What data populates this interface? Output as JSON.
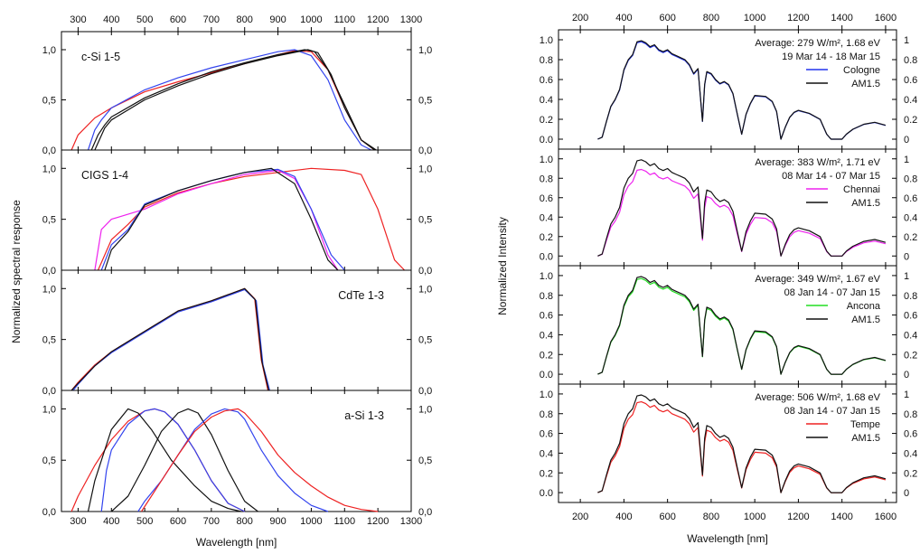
{
  "chart_data": [
    {
      "type": "line",
      "name": "spectral-response",
      "xlabel": "Wavelength [nm]",
      "ylabel": "Normalized spectral response",
      "xlim": [
        250,
        1300
      ],
      "ylim": [
        0,
        1.18
      ],
      "xticks": [
        300,
        400,
        500,
        600,
        700,
        800,
        900,
        1000,
        1100,
        1200,
        1300
      ],
      "xtick_labels_bottom": [
        "300",
        "400",
        "500",
        "600",
        "700",
        "800",
        "900",
        "1000",
        "1100",
        "1200",
        "1300"
      ],
      "yticks": [
        0,
        0.5,
        1.0
      ],
      "ytick_labels": [
        "0,0",
        "0,5",
        "1,0"
      ],
      "colors": {
        "red": "#ee2222",
        "blue": "#3344ee",
        "black": "#111111",
        "magenta": "#ee22ee"
      },
      "panels": [
        {
          "label": "c-Si 1-5",
          "label_position": "top-left",
          "series": [
            {
              "color": "red",
              "x": [
                280,
                300,
                350,
                400,
                500,
                600,
                700,
                800,
                900,
                950,
                1000,
                1050,
                1100,
                1150,
                1190
              ],
              "y": [
                0,
                0.15,
                0.32,
                0.42,
                0.58,
                0.68,
                0.77,
                0.86,
                0.95,
                0.99,
                0.98,
                0.8,
                0.42,
                0.1,
                0
              ]
            },
            {
              "color": "blue",
              "x": [
                330,
                350,
                370,
                400,
                500,
                600,
                700,
                800,
                900,
                950,
                1000,
                1050,
                1100,
                1150,
                1180
              ],
              "y": [
                0,
                0.2,
                0.3,
                0.42,
                0.6,
                0.72,
                0.82,
                0.9,
                0.98,
                1.0,
                0.94,
                0.7,
                0.3,
                0.05,
                0
              ]
            },
            {
              "color": "black",
              "x": [
                340,
                360,
                380,
                400,
                500,
                600,
                700,
                800,
                900,
                980,
                1010,
                1050,
                1100,
                1150,
                1190
              ],
              "y": [
                0,
                0.15,
                0.25,
                0.33,
                0.52,
                0.66,
                0.78,
                0.87,
                0.95,
                1.0,
                0.98,
                0.8,
                0.45,
                0.1,
                0
              ]
            },
            {
              "color": "black",
              "x": [
                350,
                380,
                400,
                500,
                600,
                700,
                800,
                900,
                990,
                1020,
                1060,
                1100,
                1150,
                1195
              ],
              "y": [
                0,
                0.22,
                0.3,
                0.5,
                0.64,
                0.76,
                0.86,
                0.94,
                1.0,
                0.97,
                0.75,
                0.42,
                0.1,
                0
              ]
            }
          ]
        },
        {
          "label": "CIGS 1-4",
          "label_position": "top-left",
          "series": [
            {
              "color": "red",
              "x": [
                360,
                380,
                400,
                450,
                500,
                600,
                700,
                800,
                900,
                1000,
                1100,
                1150,
                1200,
                1250,
                1280
              ],
              "y": [
                0,
                0.15,
                0.3,
                0.45,
                0.62,
                0.76,
                0.85,
                0.92,
                0.96,
                1.0,
                0.98,
                0.94,
                0.6,
                0.1,
                0
              ]
            },
            {
              "color": "magenta",
              "x": [
                350,
                370,
                400,
                500,
                600,
                700,
                800,
                900,
                950,
                1000,
                1050,
                1080
              ],
              "y": [
                0,
                0.4,
                0.5,
                0.6,
                0.75,
                0.85,
                0.94,
                0.98,
                0.9,
                0.6,
                0.15,
                0
              ]
            },
            {
              "color": "blue",
              "x": [
                370,
                400,
                450,
                500,
                600,
                700,
                800,
                900,
                950,
                1000,
                1060,
                1100
              ],
              "y": [
                0,
                0.25,
                0.4,
                0.65,
                0.78,
                0.88,
                0.96,
                0.99,
                0.92,
                0.6,
                0.15,
                0
              ]
            },
            {
              "color": "black",
              "x": [
                380,
                400,
                450,
                500,
                600,
                700,
                800,
                880,
                950,
                1000,
                1050,
                1080
              ],
              "y": [
                0,
                0.2,
                0.38,
                0.64,
                0.78,
                0.88,
                0.96,
                1.0,
                0.85,
                0.5,
                0.1,
                0
              ]
            }
          ]
        },
        {
          "label": "CdTe 1-3",
          "label_position": "top-right",
          "series": [
            {
              "color": "red",
              "x": [
                280,
                300,
                350,
                400,
                500,
                600,
                700,
                750,
                800,
                830,
                850,
                870
              ],
              "y": [
                0,
                0.08,
                0.25,
                0.38,
                0.58,
                0.78,
                0.88,
                0.94,
                1.0,
                0.9,
                0.3,
                0
              ]
            },
            {
              "color": "blue",
              "x": [
                285,
                300,
                350,
                400,
                500,
                600,
                700,
                750,
                800,
                835,
                855,
                875
              ],
              "y": [
                0,
                0.06,
                0.24,
                0.37,
                0.57,
                0.77,
                0.87,
                0.93,
                0.99,
                0.88,
                0.25,
                0
              ]
            },
            {
              "color": "black",
              "x": [
                280,
                300,
                350,
                400,
                500,
                600,
                700,
                750,
                800,
                832,
                852,
                872
              ],
              "y": [
                0,
                0.07,
                0.24,
                0.38,
                0.58,
                0.78,
                0.88,
                0.94,
                1.0,
                0.89,
                0.28,
                0
              ]
            }
          ]
        },
        {
          "label": "a-Si 1-3",
          "label_position": "top-right",
          "series": [
            {
              "color": "red",
              "x": [
                280,
                300,
                350,
                400,
                450,
                500,
                530,
                560,
                600,
                650,
                700,
                750,
                800
              ],
              "y": [
                0,
                0.15,
                0.45,
                0.7,
                0.88,
                0.98,
                1.0,
                0.97,
                0.85,
                0.6,
                0.3,
                0.08,
                0
              ]
            },
            {
              "color": "blue",
              "x": [
                370,
                385,
                400,
                450,
                500,
                530,
                560,
                600,
                650,
                700,
                750,
                800
              ],
              "y": [
                0,
                0.4,
                0.6,
                0.85,
                0.98,
                1.0,
                0.97,
                0.85,
                0.6,
                0.3,
                0.08,
                0
              ]
            },
            {
              "color": "black",
              "x": [
                330,
                350,
                400,
                450,
                480,
                520,
                580,
                650,
                700,
                750,
                790
              ],
              "y": [
                0,
                0.3,
                0.8,
                1.0,
                0.96,
                0.8,
                0.5,
                0.25,
                0.1,
                0.03,
                0
              ]
            },
            {
              "color": "black",
              "x": [
                400,
                450,
                500,
                550,
                600,
                630,
                660,
                700,
                750,
                800,
                840
              ],
              "y": [
                0,
                0.15,
                0.45,
                0.78,
                0.96,
                1.0,
                0.96,
                0.75,
                0.4,
                0.1,
                0
              ]
            },
            {
              "color": "blue",
              "x": [
                480,
                500,
                550,
                600,
                650,
                700,
                740,
                780,
                800,
                850,
                900,
                950,
                1000,
                1050
              ],
              "y": [
                0,
                0.1,
                0.3,
                0.55,
                0.8,
                0.95,
                1.0,
                0.97,
                0.9,
                0.6,
                0.35,
                0.18,
                0.06,
                0
              ]
            },
            {
              "color": "red",
              "x": [
                490,
                550,
                600,
                650,
                700,
                740,
                780,
                800,
                850,
                900,
                950,
                1000,
                1050,
                1100,
                1150,
                1200
              ],
              "y": [
                0,
                0.3,
                0.55,
                0.78,
                0.92,
                0.98,
                1.0,
                0.96,
                0.78,
                0.55,
                0.38,
                0.25,
                0.14,
                0.06,
                0.02,
                0
              ]
            }
          ]
        }
      ]
    },
    {
      "type": "line",
      "name": "normalized-intensity",
      "xlabel": "Wavelength [nm]",
      "ylabel": "Normalized Intensity",
      "xlim": [
        100,
        1650
      ],
      "ylim": [
        -0.1,
        1.1
      ],
      "xticks": [
        200,
        400,
        600,
        800,
        1000,
        1200,
        1400,
        1600
      ],
      "xtick_labels": [
        "200",
        "400",
        "600",
        "800",
        "1000",
        "1200",
        "1400",
        "1600"
      ],
      "yticks": [
        0,
        0.2,
        0.4,
        0.6,
        0.8,
        1.0
      ],
      "ytick_labels_left": [
        "0.0",
        "0.2",
        "0.4",
        "0.6",
        "0.8",
        "1.0"
      ],
      "ytick_labels_right": [
        "0",
        "0.2",
        "0.4",
        "0.6",
        "0.8",
        "1"
      ],
      "reference_spectrum": {
        "x": [
          280,
          300,
          320,
          340,
          360,
          380,
          400,
          420,
          440,
          460,
          480,
          500,
          520,
          540,
          560,
          580,
          600,
          620,
          640,
          660,
          680,
          700,
          720,
          740,
          760,
          770,
          780,
          800,
          820,
          840,
          860,
          880,
          900,
          920,
          940,
          960,
          980,
          1000,
          1050,
          1080,
          1100,
          1120,
          1140,
          1160,
          1180,
          1200,
          1250,
          1300,
          1330,
          1350,
          1380,
          1400,
          1420,
          1450,
          1500,
          1550,
          1600
        ],
        "y": [
          0,
          0.02,
          0.18,
          0.33,
          0.4,
          0.5,
          0.7,
          0.8,
          0.85,
          0.98,
          0.99,
          0.97,
          0.93,
          0.95,
          0.9,
          0.88,
          0.9,
          0.86,
          0.84,
          0.82,
          0.8,
          0.75,
          0.66,
          0.71,
          0.18,
          0.55,
          0.68,
          0.66,
          0.6,
          0.56,
          0.58,
          0.55,
          0.46,
          0.25,
          0.05,
          0.25,
          0.36,
          0.44,
          0.43,
          0.38,
          0.28,
          0.0,
          0.12,
          0.22,
          0.27,
          0.29,
          0.26,
          0.2,
          0.05,
          0.0,
          0.0,
          0.0,
          0.05,
          0.1,
          0.15,
          0.17,
          0.14
        ]
      },
      "panels": [
        {
          "line1": "Average: 279 W/m², 1.68 eV",
          "line2": "19 Mar 14 - 18 Mar 15",
          "site": "Cologne",
          "site_color": "#2233ee",
          "reference": "AM1.5",
          "scale": 0.99
        },
        {
          "line1": "Average: 383 W/m², 1.71 eV",
          "line2": "08 Mar 14 - 07 Mar 15",
          "site": "Chennai",
          "site_color": "#ee22ee",
          "reference": "AM1.5",
          "scale": 0.9
        },
        {
          "line1": "Average: 349 W/m², 1.67 eV",
          "line2": "08 Jan 14 - 07 Jan 15",
          "site": "Ancona",
          "site_color": "#22dd22",
          "reference": "AM1.5",
          "scale": 0.98
        },
        {
          "line1": "Average: 506 W/m², 1.68 eV",
          "line2": "08 Jan 14 - 07 Jan 15",
          "site": "Tempe",
          "site_color": "#ee2222",
          "reference": "AM1.5",
          "scale": 0.93
        }
      ]
    }
  ]
}
